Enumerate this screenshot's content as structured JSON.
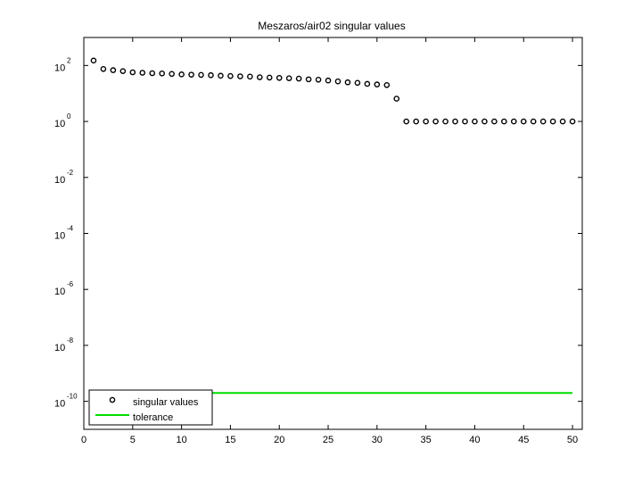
{
  "chart_data": {
    "type": "scatter",
    "title": "Meszaros/air02 singular values",
    "xlabel": "",
    "ylabel": "",
    "x_scale": "linear",
    "y_scale": "log",
    "xlim": [
      0,
      51
    ],
    "ylim_log10": [
      -11,
      3
    ],
    "x_ticks": [
      0,
      5,
      10,
      15,
      20,
      25,
      30,
      35,
      40,
      45,
      50
    ],
    "y_ticks": [
      {
        "base": "10",
        "exp": "2",
        "value": 100
      },
      {
        "base": "10",
        "exp": "0",
        "value": 1
      },
      {
        "base": "10",
        "exp": "-2",
        "value": 0.01
      },
      {
        "base": "10",
        "exp": "-4",
        "value": 0.0001
      },
      {
        "base": "10",
        "exp": "-6",
        "value": 1e-06
      },
      {
        "base": "10",
        "exp": "-8",
        "value": 1e-08
      },
      {
        "base": "10",
        "exp": "-10",
        "value": 1e-10
      }
    ],
    "grid": false,
    "legend_position": "bottom-left",
    "series": [
      {
        "name": "singular values",
        "marker": "circle-open",
        "color": "#000000",
        "x": [
          1,
          2,
          3,
          4,
          5,
          6,
          7,
          8,
          9,
          10,
          11,
          12,
          13,
          14,
          15,
          16,
          17,
          18,
          19,
          20,
          21,
          22,
          23,
          24,
          25,
          26,
          27,
          28,
          29,
          30,
          31,
          32,
          33,
          34,
          35,
          36,
          37,
          38,
          39,
          40,
          41,
          42,
          43,
          44,
          45,
          46,
          47,
          48,
          49,
          50
        ],
        "y": [
          150,
          75,
          68,
          63,
          57,
          55,
          53,
          52,
          50,
          48,
          47,
          46,
          45,
          43,
          42,
          41,
          40,
          38,
          37,
          36,
          35,
          34,
          32,
          31,
          29,
          27,
          25,
          24,
          22,
          21,
          20,
          6.5,
          1,
          1,
          1,
          1,
          1,
          1,
          1,
          1,
          1,
          1,
          1,
          1,
          1,
          1,
          1,
          1,
          1,
          1
        ]
      },
      {
        "name": "tolerance",
        "marker": "line",
        "color": "#00dd00",
        "x": [
          1,
          50
        ],
        "y": [
          2e-10,
          2e-10
        ]
      }
    ]
  }
}
